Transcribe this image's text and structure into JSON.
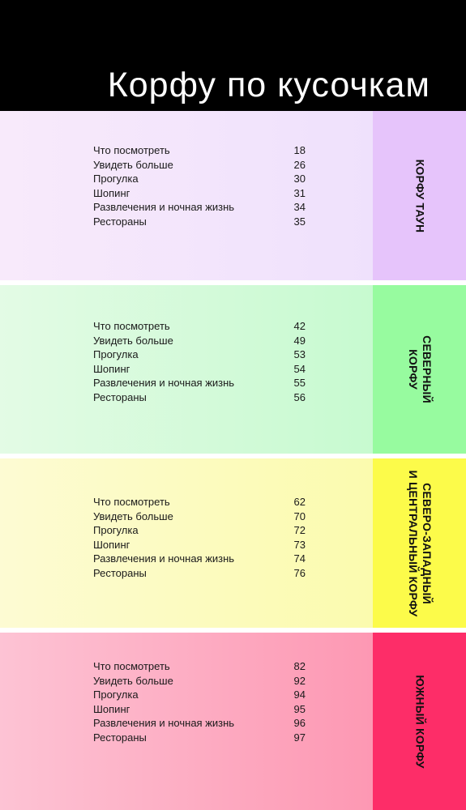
{
  "title": "Корфу по кусочкам",
  "sections": [
    {
      "tab_label": "КОРФУ ТАУН",
      "colors": {
        "content_start": "#f8eafb",
        "content_end": "#efe1fc",
        "tab": "#e6c4fb"
      },
      "items": [
        {
          "label": "Что посмотреть",
          "page": "18"
        },
        {
          "label": "Увидеть больше",
          "page": "26"
        },
        {
          "label": "Прогулка",
          "page": "30"
        },
        {
          "label": "Шопинг",
          "page": "31"
        },
        {
          "label": "Развлечения и ночная жизнь",
          "page": "34"
        },
        {
          "label": "Рестораны",
          "page": "35"
        }
      ]
    },
    {
      "tab_label": "СЕВЕРНЫЙ\nКОРФУ",
      "colors": {
        "content_start": "#e3fbe5",
        "content_end": "#c7fad0",
        "tab": "#97fb9f"
      },
      "items": [
        {
          "label": "Что посмотреть",
          "page": "42"
        },
        {
          "label": "Увидеть больше",
          "page": "49"
        },
        {
          "label": "Прогулка",
          "page": "53"
        },
        {
          "label": "Шопинг",
          "page": "54"
        },
        {
          "label": "Развлечения и ночная жизнь",
          "page": "55"
        },
        {
          "label": "Рестораны",
          "page": "56"
        }
      ]
    },
    {
      "tab_label": "СЕВЕРО-ЗАПАДНЫЙ\nИ ЦЕНТРАЛЬНЫЙ КОРФУ",
      "colors": {
        "content_start": "#fdfbd3",
        "content_end": "#fbfbae",
        "tab": "#fcfb4a"
      },
      "items": [
        {
          "label": "Что посмотреть",
          "page": "62"
        },
        {
          "label": "Увидеть больше",
          "page": "70"
        },
        {
          "label": "Прогулка",
          "page": "72"
        },
        {
          "label": "Шопинг",
          "page": "73"
        },
        {
          "label": "Развлечения и ночная жизнь",
          "page": "74"
        },
        {
          "label": "Рестораны",
          "page": "76"
        }
      ]
    },
    {
      "tab_label": "ЮЖНЫЙ КОРФУ",
      "colors": {
        "content_start": "#fdc3d4",
        "content_end": "#fd98b3",
        "tab": "#fd2d68"
      },
      "items": [
        {
          "label": "Что посмотреть",
          "page": "82"
        },
        {
          "label": "Увидеть больше",
          "page": "92"
        },
        {
          "label": "Прогулка",
          "page": "94"
        },
        {
          "label": "Шопинг",
          "page": "95"
        },
        {
          "label": "Развлечения и ночная жизнь",
          "page": "96"
        },
        {
          "label": "Рестораны",
          "page": "97"
        }
      ]
    }
  ]
}
